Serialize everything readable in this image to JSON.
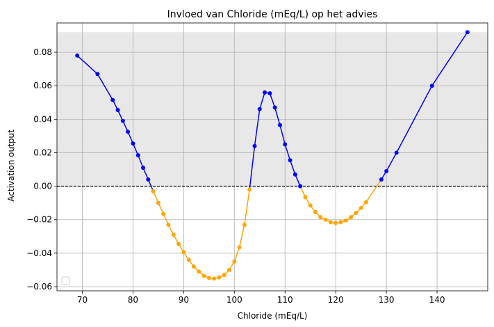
{
  "chart_data": {
    "type": "line",
    "title": "Invloed van Chloride (mEq/L) op het advies",
    "xlabel": "Chloride (mEq/L)",
    "ylabel": "Activation output",
    "xlim": [
      65,
      150
    ],
    "ylim": [
      -0.0625,
      0.0975
    ],
    "xticks": [
      70,
      80,
      90,
      100,
      110,
      120,
      130,
      140
    ],
    "yticks": [
      -0.06,
      -0.04,
      -0.02,
      0.0,
      0.02,
      0.04,
      0.06,
      0.08
    ],
    "ytick_labels": [
      "−0.06",
      "−0.04",
      "−0.02",
      "0.00",
      "0.02",
      "0.04",
      "0.06",
      "0.08"
    ],
    "grid": true,
    "legend": "lower-left (empty)",
    "reference_line": {
      "y": 0.0,
      "style": "dashed",
      "color": "#000000"
    },
    "shaded_band": {
      "y_from": 0.0,
      "y_to": 0.092,
      "color": "#e8e8e8"
    },
    "colors": {
      "positive": "#0000ff",
      "negative": "#ffa500"
    },
    "x": [
      69,
      73,
      76,
      77,
      78,
      79,
      80,
      81,
      82,
      83,
      84,
      85,
      86,
      87,
      88,
      89,
      90,
      91,
      92,
      93,
      94,
      95,
      96,
      97,
      98,
      99,
      100,
      101,
      102,
      103,
      104,
      105,
      106,
      107,
      108,
      109,
      110,
      111,
      112,
      113,
      114,
      115,
      116,
      117,
      118,
      119,
      120,
      121,
      122,
      123,
      124,
      125,
      126,
      129,
      130,
      132,
      139,
      146
    ],
    "y": [
      0.078,
      0.067,
      0.0515,
      0.0455,
      0.039,
      0.0325,
      0.0255,
      0.0185,
      0.011,
      0.004,
      -0.003,
      -0.01,
      -0.0165,
      -0.023,
      -0.029,
      -0.0345,
      -0.0395,
      -0.044,
      -0.048,
      -0.051,
      -0.0535,
      -0.0548,
      -0.0552,
      -0.0545,
      -0.053,
      -0.05,
      -0.045,
      -0.0365,
      -0.023,
      -0.002,
      0.024,
      0.046,
      0.056,
      0.0555,
      0.047,
      0.0365,
      0.025,
      0.0155,
      0.007,
      0.0,
      -0.0065,
      -0.0115,
      -0.0155,
      -0.0185,
      -0.02,
      -0.0215,
      -0.022,
      -0.0215,
      -0.0205,
      -0.0185,
      -0.016,
      -0.013,
      -0.0095,
      0.004,
      0.009,
      0.02,
      0.06,
      0.092
    ]
  }
}
